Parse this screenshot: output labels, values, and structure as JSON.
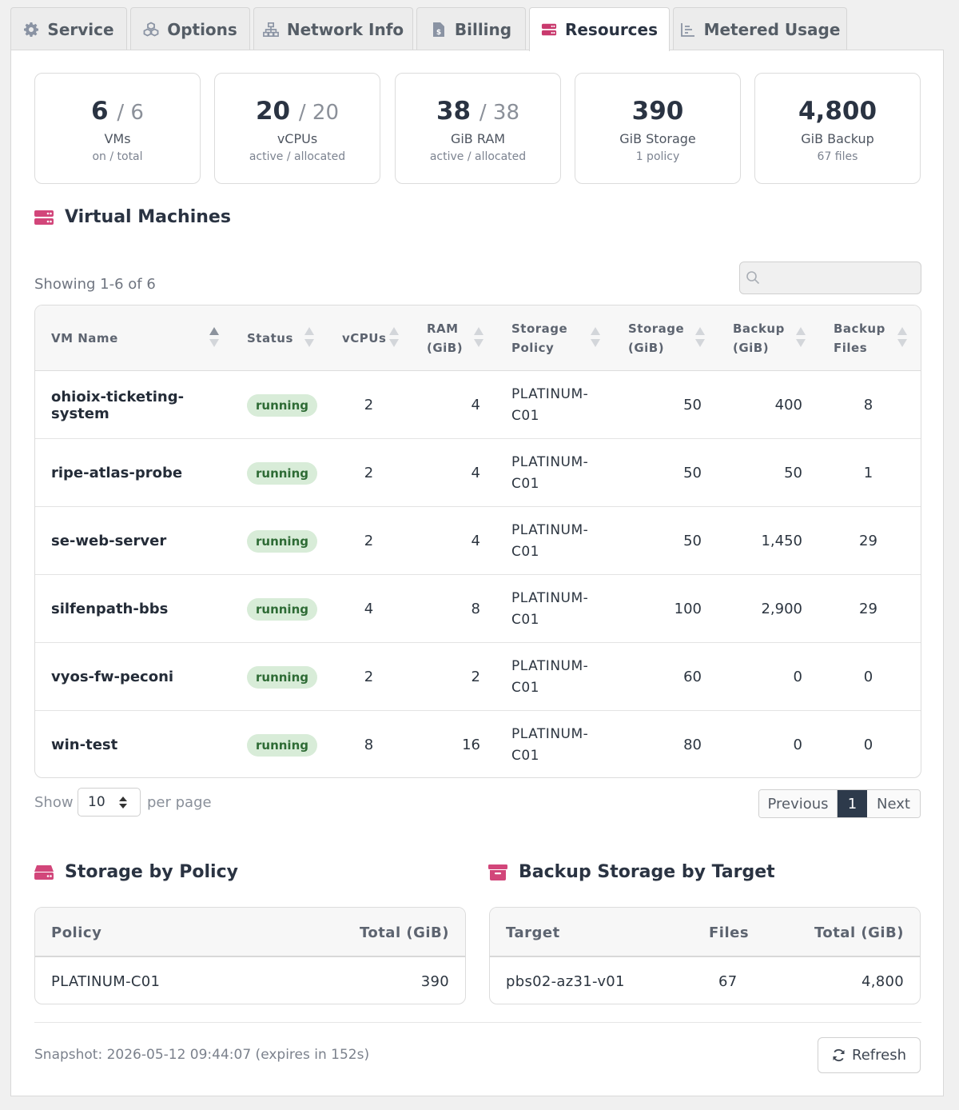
{
  "tabs": [
    {
      "label": "Service",
      "icon": "gear-icon"
    },
    {
      "label": "Options",
      "icon": "cubes-icon"
    },
    {
      "label": "Network Info",
      "icon": "network-icon"
    },
    {
      "label": "Billing",
      "icon": "invoice-icon"
    },
    {
      "label": "Resources",
      "icon": "server-icon",
      "active": true
    },
    {
      "label": "Metered Usage",
      "icon": "chart-icon"
    }
  ],
  "stats": [
    {
      "value": "6",
      "total": "/ 6",
      "label": "VMs",
      "sub": "on / total"
    },
    {
      "value": "20",
      "total": "/ 20",
      "label": "vCPUs",
      "sub": "active / allocated"
    },
    {
      "value": "38",
      "total": "/ 38",
      "label": "GiB RAM",
      "sub": "active / allocated"
    },
    {
      "value": "390",
      "total": "",
      "label": "GiB Storage",
      "sub": "1 policy"
    },
    {
      "value": "4,800",
      "total": "",
      "label": "GiB Backup",
      "sub": "67 files"
    }
  ],
  "vm_section": {
    "title": "Virtual Machines",
    "showing": "Showing 1-6 of 6",
    "search_placeholder": "",
    "columns": [
      {
        "line1": "VM Name",
        "line2": ""
      },
      {
        "line1": "Status",
        "line2": ""
      },
      {
        "line1": "vCPUs",
        "line2": ""
      },
      {
        "line1": "RAM",
        "line2": "(GiB)"
      },
      {
        "line1": "Storage",
        "line2": "Policy"
      },
      {
        "line1": "Storage",
        "line2": "(GiB)"
      },
      {
        "line1": "Backup",
        "line2": "(GiB)"
      },
      {
        "line1": "Backup",
        "line2": "Files"
      }
    ],
    "rows": [
      {
        "name": "ohioix-ticketing-system",
        "status": "running",
        "vcpus": "2",
        "ram": "4",
        "policy1": "PLATINUM-",
        "policy2": "C01",
        "storage": "50",
        "backup": "400",
        "files": "8"
      },
      {
        "name": "ripe-atlas-probe",
        "status": "running",
        "vcpus": "2",
        "ram": "4",
        "policy1": "PLATINUM-",
        "policy2": "C01",
        "storage": "50",
        "backup": "50",
        "files": "1"
      },
      {
        "name": "se-web-server",
        "status": "running",
        "vcpus": "2",
        "ram": "4",
        "policy1": "PLATINUM-",
        "policy2": "C01",
        "storage": "50",
        "backup": "1,450",
        "files": "29"
      },
      {
        "name": "silfenpath-bbs",
        "status": "running",
        "vcpus": "4",
        "ram": "8",
        "policy1": "PLATINUM-",
        "policy2": "C01",
        "storage": "100",
        "backup": "2,900",
        "files": "29"
      },
      {
        "name": "vyos-fw-peconi",
        "status": "running",
        "vcpus": "2",
        "ram": "2",
        "policy1": "PLATINUM-",
        "policy2": "C01",
        "storage": "60",
        "backup": "0",
        "files": "0"
      },
      {
        "name": "win-test",
        "status": "running",
        "vcpus": "8",
        "ram": "16",
        "policy1": "PLATINUM-",
        "policy2": "C01",
        "storage": "80",
        "backup": "0",
        "files": "0"
      }
    ],
    "show_label": "Show",
    "per_page_value": "10",
    "per_page_label": "per page",
    "pager": {
      "previous": "Previous",
      "current": "1",
      "next": "Next"
    }
  },
  "storage_policy": {
    "title": "Storage by Policy",
    "headers": [
      "Policy",
      "Total (GiB)"
    ],
    "rows": [
      {
        "policy": "PLATINUM-C01",
        "total": "390"
      }
    ]
  },
  "backup_target": {
    "title": "Backup Storage by Target",
    "headers": [
      "Target",
      "Files",
      "Total (GiB)"
    ],
    "rows": [
      {
        "target": "pbs02-az31-v01",
        "files": "67",
        "total": "4,800"
      }
    ]
  },
  "footer": {
    "snapshot": "Snapshot: 2026-05-12 09:44:07 (expires in 152s)",
    "refresh_label": "Refresh"
  },
  "colors": {
    "accent": "#d2467a",
    "badge_bg": "#d8ecd8",
    "badge_text": "#2e6b35",
    "pager_active": "#2d3a4b"
  }
}
